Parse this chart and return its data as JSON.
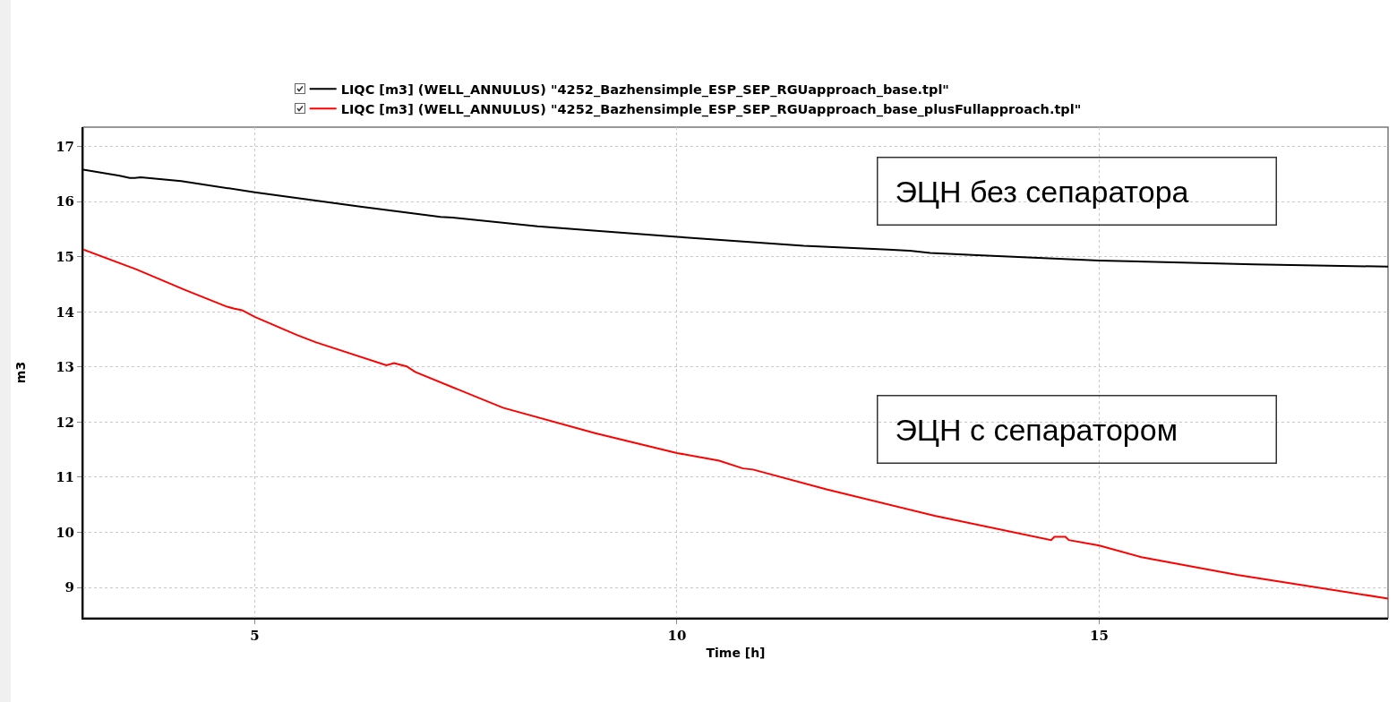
{
  "chart_data": {
    "type": "line",
    "xlabel": "Time [h]",
    "ylabel": "m3",
    "annotations": [
      "ЭЦН без сепаратора",
      "ЭЦН с сепаратором"
    ],
    "series": [
      {
        "name": "LIQC [m3] (WELL_ANNULUS) \"4252_Bazhensimple_ESP_SEP_RGUapproach_base.tpl\"",
        "color": "#000000",
        "x": [
          2.97,
          3.4,
          3.52,
          3.58,
          3.65,
          4.13,
          5,
          6.25,
          7.2,
          7.35,
          8.35,
          10,
          11.5,
          12.5,
          12.75,
          13,
          13.5,
          15,
          16.83,
          18.42
        ],
        "values": [
          16.58,
          16.47,
          16.43,
          16.43,
          16.44,
          16.37,
          16.17,
          15.91,
          15.72,
          15.71,
          15.55,
          15.36,
          15.2,
          15.13,
          15.11,
          15.07,
          15.03,
          14.93,
          14.86,
          14.82
        ]
      },
      {
        "name": "LIQC [m3] (WELL_ANNULUS) \"4252_Bazhensimple_ESP_SEP_RGUapproach_base_plusFullapproach.tpl\"",
        "color": "#ff0000",
        "x": [
          2.97,
          3.6,
          4.17,
          4.66,
          4.75,
          4.85,
          5,
          5.5,
          5.72,
          6.56,
          6.65,
          6.8,
          6.9,
          7.94,
          9.03,
          10,
          10.5,
          10.78,
          10.9,
          11.77,
          13.05,
          14.43,
          14.47,
          14.6,
          14.64,
          15,
          15.5,
          16.63,
          18.42
        ],
        "values": [
          15.13,
          14.77,
          14.4,
          14.1,
          14.06,
          14.03,
          13.91,
          13.58,
          13.45,
          13.03,
          13.07,
          13.01,
          12.91,
          12.26,
          11.8,
          11.44,
          11.3,
          11.16,
          11.14,
          10.78,
          10.3,
          9.86,
          9.92,
          9.92,
          9.86,
          9.76,
          9.55,
          9.23,
          8.8
        ]
      }
    ],
    "xlim": [
      2.97,
      18.42
    ],
    "xticks": [
      5,
      10,
      15
    ],
    "ylim": [
      8.45,
      17.35
    ],
    "yticks": [
      9,
      10,
      11,
      12,
      13,
      14,
      15,
      16,
      17
    ],
    "grid": true,
    "legend": "top",
    "line_style": "solid"
  }
}
